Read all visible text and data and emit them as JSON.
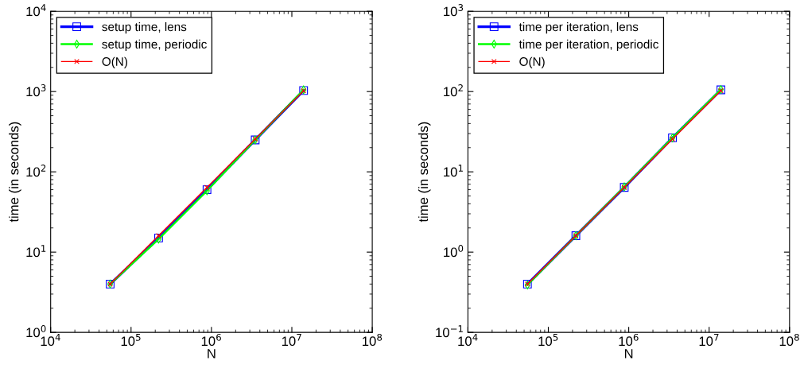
{
  "chart_data": [
    {
      "type": "line",
      "xlabel": "N",
      "ylabel": "time (in seconds)",
      "log": "xy",
      "grid": false,
      "legend": "top left",
      "line_style": "solid",
      "xlim": [
        10000,
        100000000
      ],
      "xticks": [
        {
          "value": 10000,
          "label": "10$^{4}$"
        },
        {
          "value": 100000,
          "label": "10$^{5}$"
        },
        {
          "value": 1000000,
          "label": "10$^{6}$"
        },
        {
          "value": 10000000,
          "label": "10$^{7}$"
        },
        {
          "value": 100000000,
          "label": "10$^{8}$"
        }
      ],
      "ylim": [
        1,
        10000
      ],
      "yticks": [
        {
          "value": 1,
          "label": "10$^{0}$"
        },
        {
          "value": 10,
          "label": "10$^{1}$"
        },
        {
          "value": 100,
          "label": "10$^{2}$"
        },
        {
          "value": 1000,
          "label": "10$^{3}$"
        },
        {
          "value": 10000,
          "label": "10$^{4}$"
        }
      ],
      "x": [
        55000,
        220000,
        880000,
        3500000,
        14000000
      ],
      "series": [
        {
          "name": "setup time, lens",
          "color": "#0000ff",
          "marker": "square",
          "values": [
            4,
            15,
            60,
            250,
            1030
          ]
        },
        {
          "name": "setup time, periodic",
          "color": "#00ff00",
          "marker": "diamond",
          "values": [
            4,
            14.5,
            58,
            250,
            1050
          ]
        },
        {
          "name": "O(N)",
          "color": "#ff0000",
          "marker": "cross",
          "values": [
            4,
            16,
            64,
            256,
            1024
          ]
        }
      ]
    },
    {
      "type": "line",
      "xlabel": "N",
      "ylabel": "time (in seconds)",
      "log": "xy",
      "grid": false,
      "legend": "top left",
      "line_style": "solid",
      "xlim": [
        10000,
        100000000
      ],
      "xticks": [
        {
          "value": 10000,
          "label": "10$^{4}$"
        },
        {
          "value": 100000,
          "label": "10$^{5}$"
        },
        {
          "value": 1000000,
          "label": "10$^{6}$"
        },
        {
          "value": 10000000,
          "label": "10$^{7}$"
        },
        {
          "value": 100000000,
          "label": "10$^{8}$"
        }
      ],
      "ylim": [
        0.1,
        1000
      ],
      "yticks": [
        {
          "value": 0.1,
          "label": "10$^{−1}$"
        },
        {
          "value": 1,
          "label": "10$^{0}$"
        },
        {
          "value": 10,
          "label": "10$^{1}$"
        },
        {
          "value": 100,
          "label": "10$^{2}$"
        },
        {
          "value": 1000,
          "label": "10$^{3}$"
        }
      ],
      "x": [
        55000,
        220000,
        880000,
        3500000,
        14000000
      ],
      "series": [
        {
          "name": "time per iteration, lens",
          "color": "#0000ff",
          "marker": "square",
          "values": [
            0.4,
            1.6,
            6.4,
            26.5,
            105
          ]
        },
        {
          "name": "time per iteration, periodic",
          "color": "#00ff00",
          "marker": "diamond",
          "values": [
            0.39,
            1.6,
            6.5,
            26.5,
            106
          ]
        },
        {
          "name": "O(N)",
          "color": "#ff0000",
          "marker": "cross",
          "values": [
            0.4,
            1.6,
            6.4,
            25.6,
            102.4
          ]
        }
      ]
    }
  ]
}
